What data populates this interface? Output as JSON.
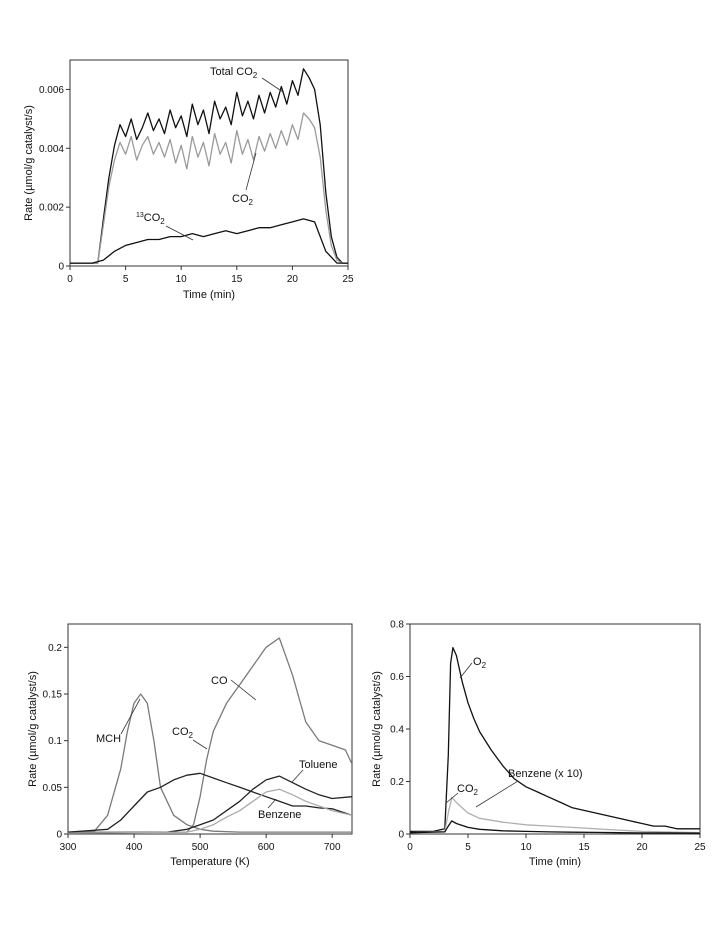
{
  "chart_data": [
    {
      "type": "line",
      "xlabel": "Time (min)",
      "ylabel": "Rate (µmol/g catalyst/s)",
      "xlim": [
        0,
        25
      ],
      "ylim": [
        0,
        0.007
      ],
      "xticks": [
        "0",
        "5",
        "10",
        "15",
        "20",
        "25"
      ],
      "yticks": [
        "0",
        "0.002",
        "0.004",
        "0.006"
      ],
      "ytick_values": [
        0,
        0.002,
        0.004,
        0.006
      ],
      "grid": false,
      "annotations": [
        {
          "parts": [
            "Total CO",
            "2"
          ],
          "series": 0
        },
        {
          "parts": [
            "CO",
            "2"
          ],
          "series": 1
        },
        {
          "parts": [
            "13",
            "CO",
            "2"
          ],
          "series": 2
        }
      ],
      "series": [
        {
          "name": "Total CO2",
          "color": "#111111",
          "x": [
            0,
            1,
            2,
            2.5,
            3,
            3.5,
            4,
            4.5,
            5,
            5.5,
            6,
            6.5,
            7,
            7.5,
            8,
            8.5,
            9,
            9.5,
            10,
            10.5,
            11,
            11.5,
            12,
            12.5,
            13,
            13.5,
            14,
            14.5,
            15,
            15.5,
            16,
            16.5,
            17,
            17.5,
            18,
            18.5,
            19,
            19.5,
            20,
            20.5,
            21,
            21.5,
            22,
            22.5,
            23,
            23.5,
            24,
            24.5,
            25
          ],
          "y": [
            0.0001,
            0.0001,
            0.0001,
            0.0001,
            0.0016,
            0.003,
            0.0041,
            0.0048,
            0.0044,
            0.005,
            0.0043,
            0.0047,
            0.0052,
            0.0046,
            0.005,
            0.0045,
            0.0053,
            0.0047,
            0.0051,
            0.0044,
            0.0055,
            0.0048,
            0.0053,
            0.0045,
            0.0056,
            0.005,
            0.0054,
            0.0048,
            0.0059,
            0.0051,
            0.0056,
            0.005,
            0.0058,
            0.0052,
            0.0059,
            0.0054,
            0.0061,
            0.0055,
            0.0063,
            0.0058,
            0.0067,
            0.0064,
            0.006,
            0.0048,
            0.0025,
            0.001,
            0.0003,
            0.0001,
            0.0001
          ]
        },
        {
          "name": "CO2",
          "color": "#9a9a9a",
          "x": [
            0,
            1,
            2,
            2.5,
            3,
            3.5,
            4,
            4.5,
            5,
            5.5,
            6,
            6.5,
            7,
            7.5,
            8,
            8.5,
            9,
            9.5,
            10,
            10.5,
            11,
            11.5,
            12,
            12.5,
            13,
            13.5,
            14,
            14.5,
            15,
            15.5,
            16,
            16.5,
            17,
            17.5,
            18,
            18.5,
            19,
            19.5,
            20,
            20.5,
            21,
            21.5,
            22,
            22.5,
            23,
            23.5,
            24,
            24.5,
            25
          ],
          "y": [
            0.0001,
            0.0001,
            0.0001,
            0.0001,
            0.0014,
            0.0027,
            0.0036,
            0.0042,
            0.0038,
            0.0044,
            0.0036,
            0.0041,
            0.0044,
            0.0038,
            0.0042,
            0.0037,
            0.0043,
            0.0035,
            0.0041,
            0.0033,
            0.0044,
            0.0037,
            0.0042,
            0.0034,
            0.0045,
            0.0038,
            0.0042,
            0.0035,
            0.0046,
            0.0038,
            0.0043,
            0.0036,
            0.0044,
            0.0039,
            0.0045,
            0.004,
            0.0046,
            0.0041,
            0.0048,
            0.0043,
            0.0052,
            0.005,
            0.0047,
            0.0037,
            0.0019,
            0.0007,
            0.0002,
            0.0001,
            0.0001
          ]
        },
        {
          "name": "13CO2",
          "color": "#111111",
          "x": [
            0,
            1,
            2,
            3,
            4,
            5,
            6,
            7,
            8,
            9,
            10,
            11,
            12,
            13,
            14,
            15,
            16,
            17,
            18,
            19,
            20,
            21,
            22,
            23,
            24,
            25
          ],
          "y": [
            0.0001,
            0.0001,
            0.0001,
            0.0002,
            0.0005,
            0.0007,
            0.0008,
            0.0009,
            0.0009,
            0.001,
            0.001,
            0.0011,
            0.001,
            0.0011,
            0.0012,
            0.0011,
            0.0012,
            0.0013,
            0.0013,
            0.0014,
            0.0015,
            0.0016,
            0.0015,
            0.0005,
            0.0001,
            0.0001
          ]
        }
      ]
    },
    {
      "type": "line",
      "xlabel": "Temperature (K)",
      "ylabel": "Rate (µmol/g catalyst/s)",
      "xlim": [
        300,
        730
      ],
      "ylim": [
        0,
        0.225
      ],
      "xticks": [
        "300",
        "400",
        "500",
        "600",
        "700"
      ],
      "xtick_values": [
        300,
        400,
        500,
        600,
        700
      ],
      "yticks": [
        "0",
        "0.05",
        "0.1",
        "0.15",
        "0.2"
      ],
      "ytick_values": [
        0,
        0.05,
        0.1,
        0.15,
        0.2
      ],
      "grid": false,
      "annotations": [
        {
          "parts": [
            "MCH"
          ],
          "series": 0
        },
        {
          "parts": [
            "CO"
          ],
          "series": 1
        },
        {
          "parts": [
            "CO",
            "2"
          ],
          "series": 2
        },
        {
          "parts": [
            "Toluene"
          ],
          "series": 3
        },
        {
          "parts": [
            "Benzene"
          ],
          "series": 4
        }
      ],
      "series": [
        {
          "name": "MCH",
          "color": "#7a7a7a",
          "x": [
            300,
            340,
            360,
            380,
            390,
            400,
            410,
            420,
            430,
            440,
            460,
            480,
            500,
            520,
            560,
            600,
            650,
            700,
            730
          ],
          "y": [
            0.002,
            0.003,
            0.02,
            0.07,
            0.11,
            0.14,
            0.15,
            0.14,
            0.1,
            0.05,
            0.02,
            0.01,
            0.005,
            0.003,
            0.002,
            0.002,
            0.002,
            0.002,
            0.002
          ]
        },
        {
          "name": "CO",
          "color": "#7a7a7a",
          "x": [
            300,
            400,
            480,
            490,
            500,
            510,
            520,
            540,
            560,
            580,
            600,
            610,
            620,
            630,
            640,
            660,
            680,
            700,
            720,
            730
          ],
          "y": [
            0.002,
            0.002,
            0.002,
            0.01,
            0.04,
            0.08,
            0.11,
            0.14,
            0.16,
            0.18,
            0.2,
            0.205,
            0.21,
            0.19,
            0.17,
            0.12,
            0.1,
            0.095,
            0.09,
            0.075
          ]
        },
        {
          "name": "CO2",
          "color": "#222222",
          "x": [
            300,
            360,
            380,
            400,
            420,
            440,
            460,
            480,
            500,
            520,
            540,
            560,
            580,
            600,
            620,
            640,
            660,
            680,
            700,
            730
          ],
          "y": [
            0.002,
            0.005,
            0.015,
            0.03,
            0.045,
            0.05,
            0.058,
            0.063,
            0.065,
            0.06,
            0.055,
            0.05,
            0.045,
            0.04,
            0.035,
            0.03,
            0.03,
            0.028,
            0.027,
            0.02
          ]
        },
        {
          "name": "Toluene",
          "color": "#222222",
          "x": [
            300,
            450,
            480,
            500,
            520,
            540,
            560,
            580,
            600,
            620,
            640,
            660,
            680,
            700,
            730
          ],
          "y": [
            0.001,
            0.002,
            0.005,
            0.01,
            0.015,
            0.025,
            0.035,
            0.048,
            0.058,
            0.062,
            0.055,
            0.048,
            0.042,
            0.038,
            0.04
          ]
        },
        {
          "name": "Benzene",
          "color": "#aaaaaa",
          "x": [
            300,
            480,
            500,
            520,
            540,
            560,
            580,
            600,
            620,
            640,
            660,
            680,
            700,
            730
          ],
          "y": [
            0.001,
            0.002,
            0.005,
            0.01,
            0.018,
            0.025,
            0.035,
            0.045,
            0.048,
            0.042,
            0.035,
            0.03,
            0.025,
            0.02
          ]
        }
      ]
    },
    {
      "type": "line",
      "xlabel": "Time (min)",
      "ylabel": "Rate (µmol/g catalyst/s)",
      "xlim": [
        0,
        25
      ],
      "ylim": [
        0,
        0.8
      ],
      "xticks": [
        "0",
        "5",
        "10",
        "15",
        "20",
        "25"
      ],
      "yticks": [
        "0",
        "0.2",
        "0.4",
        "0.6",
        "0.8"
      ],
      "ytick_values": [
        0,
        0.2,
        0.4,
        0.6,
        0.8
      ],
      "grid": false,
      "annotations": [
        {
          "parts": [
            "O",
            "2"
          ],
          "series": 0
        },
        {
          "parts": [
            "CO",
            "2"
          ],
          "series": 1
        },
        {
          "parts": [
            "Benzene (x 10)"
          ],
          "series": 2
        }
      ],
      "series": [
        {
          "name": "O2",
          "color": "#111111",
          "x": [
            0,
            2,
            3,
            3.3,
            3.5,
            3.7,
            4,
            4.5,
            5,
            5.5,
            6,
            7,
            8,
            9,
            10,
            11,
            12,
            13,
            14,
            15,
            16,
            17,
            18,
            19,
            20,
            21,
            22,
            23,
            24,
            25
          ],
          "y": [
            0.01,
            0.01,
            0.02,
            0.3,
            0.65,
            0.71,
            0.68,
            0.58,
            0.5,
            0.44,
            0.39,
            0.32,
            0.26,
            0.21,
            0.18,
            0.16,
            0.14,
            0.12,
            0.1,
            0.09,
            0.08,
            0.07,
            0.06,
            0.05,
            0.04,
            0.03,
            0.03,
            0.02,
            0.02,
            0.02
          ]
        },
        {
          "name": "CO2",
          "color": "#b0b0b0",
          "x": [
            0,
            3,
            3.3,
            3.6,
            4,
            5,
            6,
            8,
            10,
            12,
            14,
            16,
            18,
            20,
            22,
            25
          ],
          "y": [
            0.005,
            0.01,
            0.08,
            0.14,
            0.12,
            0.08,
            0.06,
            0.045,
            0.035,
            0.03,
            0.025,
            0.02,
            0.015,
            0.01,
            0.008,
            0.005
          ]
        },
        {
          "name": "Benzene (x 10)",
          "color": "#111111",
          "x": [
            0,
            3,
            3.3,
            3.6,
            4,
            5,
            6,
            8,
            10,
            12,
            14,
            16,
            18,
            20,
            22,
            25
          ],
          "y": [
            0.005,
            0.008,
            0.03,
            0.05,
            0.04,
            0.025,
            0.018,
            0.012,
            0.01,
            0.008,
            0.007,
            0.006,
            0.005,
            0.004,
            0.004,
            0.003
          ]
        }
      ]
    }
  ]
}
